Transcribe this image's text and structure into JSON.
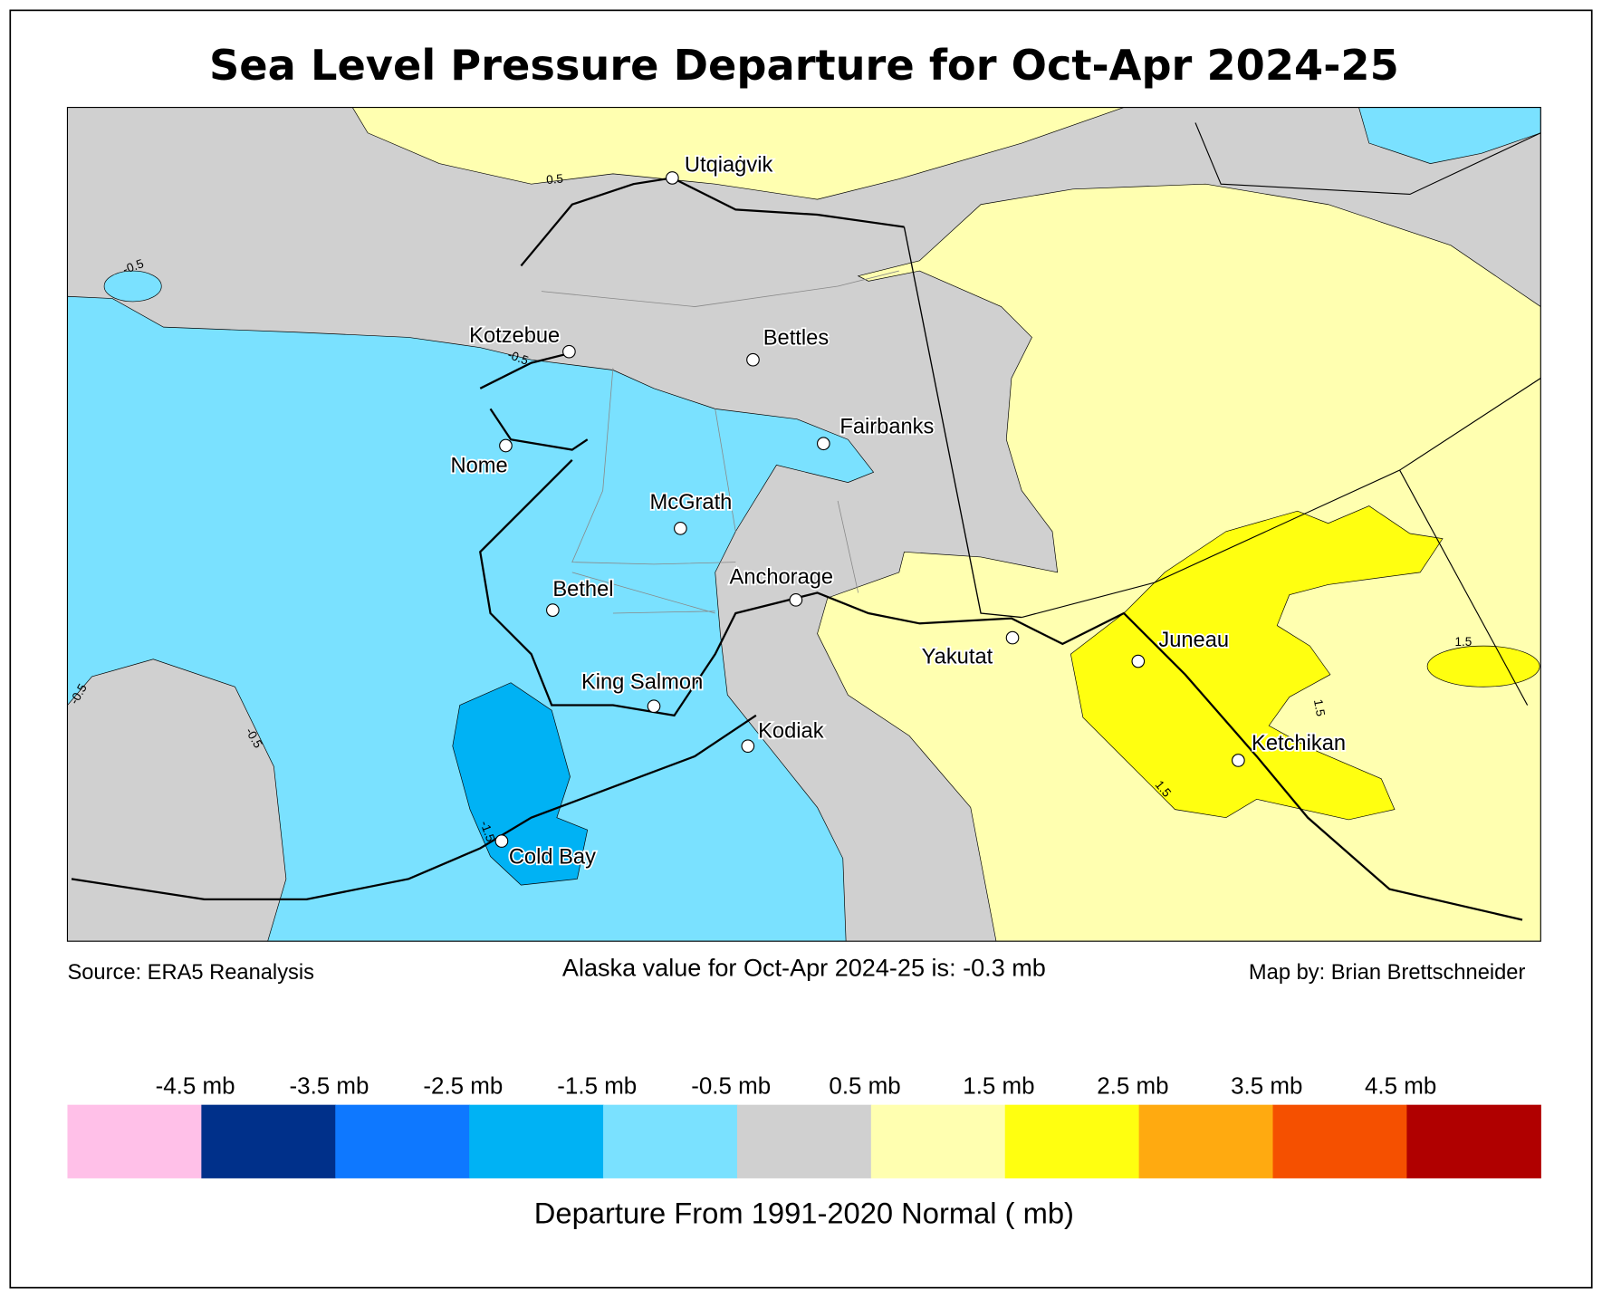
{
  "title": "Sea Level Pressure Departure for Oct-Apr 2024-25",
  "footer": {
    "source": "Source: ERA5 Reanalysis",
    "alaska_value": "Alaska value for Oct-Apr 2024-25 is: -0.3 mb",
    "credit": "Map by: Brian Brettschneider"
  },
  "cities": [
    "Utqiaġvik",
    "Kotzebue",
    "Bettles",
    "Fairbanks",
    "Nome",
    "McGrath",
    "Anchorage",
    "Bethel",
    "Yakutat",
    "Juneau",
    "King Salmon",
    "Kodiak",
    "Ketchikan",
    "Cold Bay"
  ],
  "contour_labels": [
    "0.5",
    "-0.5",
    "-0.5",
    "-0.5",
    "-0.5",
    "-1.5",
    "1.5",
    "1.5",
    "1.5"
  ],
  "legend": {
    "labels": [
      "-4.5 mb",
      "-3.5 mb",
      "-2.5 mb",
      "-1.5 mb",
      "-0.5 mb",
      "0.5 mb",
      "1.5 mb",
      "2.5 mb",
      "3.5 mb",
      "4.5 mb"
    ],
    "colors": [
      "#FFC0E8",
      "#00308A",
      "#0E78FF",
      "#00B2F4",
      "#7AE1FF",
      "#D0D0D0",
      "#FFFFB0",
      "#FFFF10",
      "#FFAA10",
      "#F55000",
      "#B00000"
    ],
    "title": "Departure From 1991-2020 Normal ( mb)"
  }
}
